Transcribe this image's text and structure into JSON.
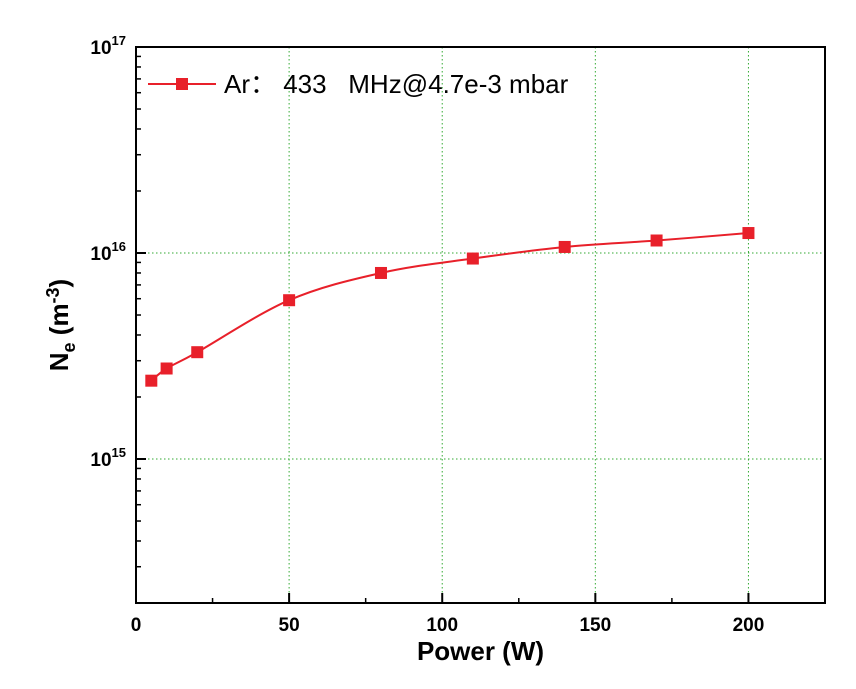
{
  "chart_data": {
    "type": "line",
    "title": "",
    "xlabel": "Power (W)",
    "ylabel": {
      "main": "N",
      "sub": "e",
      "unit_pre": " (m",
      "unit_sup": "-3",
      "unit_post": ")"
    },
    "xlim": [
      0,
      225
    ],
    "ylim": [
      200000000000000.0,
      1e+17
    ],
    "yscale": "log",
    "xticks": [
      0,
      50,
      100,
      150,
      200
    ],
    "xtick_labels": [
      "0",
      "50",
      "100",
      "150",
      "200"
    ],
    "yticks": [
      {
        "value": 1000000000000000.0,
        "base": "10",
        "exp": "15"
      },
      {
        "value": 1e+16,
        "base": "10",
        "exp": "16"
      },
      {
        "value": 1e+17,
        "base": "10",
        "exp": "17"
      }
    ],
    "grid": true,
    "legend_position": "top-left",
    "series": [
      {
        "name": "Ar： 433   MHz@4.7e-3 mbar",
        "color": "#e8202a",
        "marker": "square",
        "x": [
          5,
          10,
          20,
          50,
          80,
          110,
          140,
          170,
          200
        ],
        "y": [
          2400000000000000.0,
          2750000000000000.0,
          3300000000000000.0,
          5900000000000000.0,
          8000000000000000.0,
          9400000000000000.0,
          1.07e+16,
          1.15e+16,
          1.25e+16
        ]
      }
    ]
  }
}
